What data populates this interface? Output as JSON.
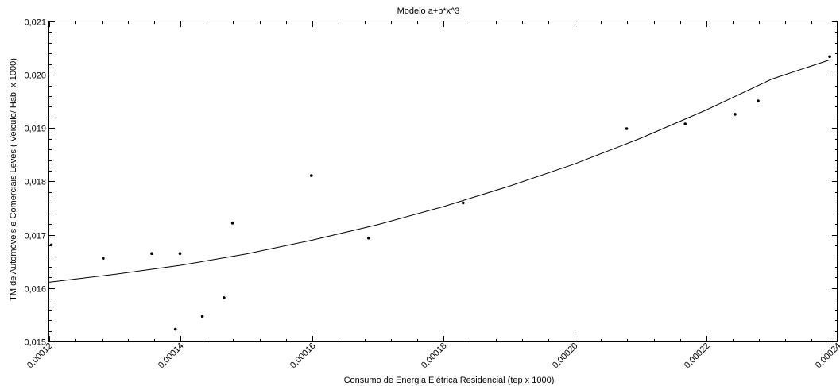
{
  "chart_data": {
    "type": "scatter",
    "title": "Modelo a+b*x^3",
    "xlabel": "Consumo de Energia Elétrica Residencial (tep x 1000)",
    "ylabel": "TM de Automóveis e Comerciais Leves ( Veículo/ Hab. x 1000)",
    "xlim": [
      0.00012,
      0.00024
    ],
    "ylim": [
      0.015,
      0.021
    ],
    "xticks": [
      "0,00012",
      "0,00014",
      "0,00016",
      "0,00018",
      "0,00020",
      "0,00022",
      "0,00024"
    ],
    "yticks": [
      "0,015",
      "0,016",
      "0,017",
      "0,018",
      "0,019",
      "0,020",
      "0,021"
    ],
    "grid": false,
    "points": [
      {
        "x": 0.0001203,
        "y": 0.01681
      },
      {
        "x": 0.0001282,
        "y": 0.01656
      },
      {
        "x": 0.0001356,
        "y": 0.01665
      },
      {
        "x": 0.0001392,
        "y": 0.01523
      },
      {
        "x": 0.0001399,
        "y": 0.01665
      },
      {
        "x": 0.0001433,
        "y": 0.01547
      },
      {
        "x": 0.0001466,
        "y": 0.01582
      },
      {
        "x": 0.0001479,
        "y": 0.01722
      },
      {
        "x": 0.0001599,
        "y": 0.01811
      },
      {
        "x": 0.0001686,
        "y": 0.01694
      },
      {
        "x": 0.000183,
        "y": 0.0176
      },
      {
        "x": 0.0002079,
        "y": 0.01899
      },
      {
        "x": 0.0002168,
        "y": 0.01908
      },
      {
        "x": 0.0002244,
        "y": 0.01926
      },
      {
        "x": 0.0002279,
        "y": 0.01951
      },
      {
        "x": 0.0002388,
        "y": 0.02034
      }
    ],
    "fit": {
      "model": "a+b*x^3",
      "x": [
        0.00012,
        0.00013,
        0.00014,
        0.00015,
        0.00016,
        0.00017,
        0.00018,
        0.00019,
        0.0002,
        0.00021,
        0.00022,
        0.00023,
        0.0002388
      ],
      "y": [
        0.01611,
        0.01626,
        0.01643,
        0.01664,
        0.0169,
        0.01719,
        0.01753,
        0.01791,
        0.01833,
        0.01881,
        0.01934,
        0.01992,
        0.02028
      ]
    }
  }
}
